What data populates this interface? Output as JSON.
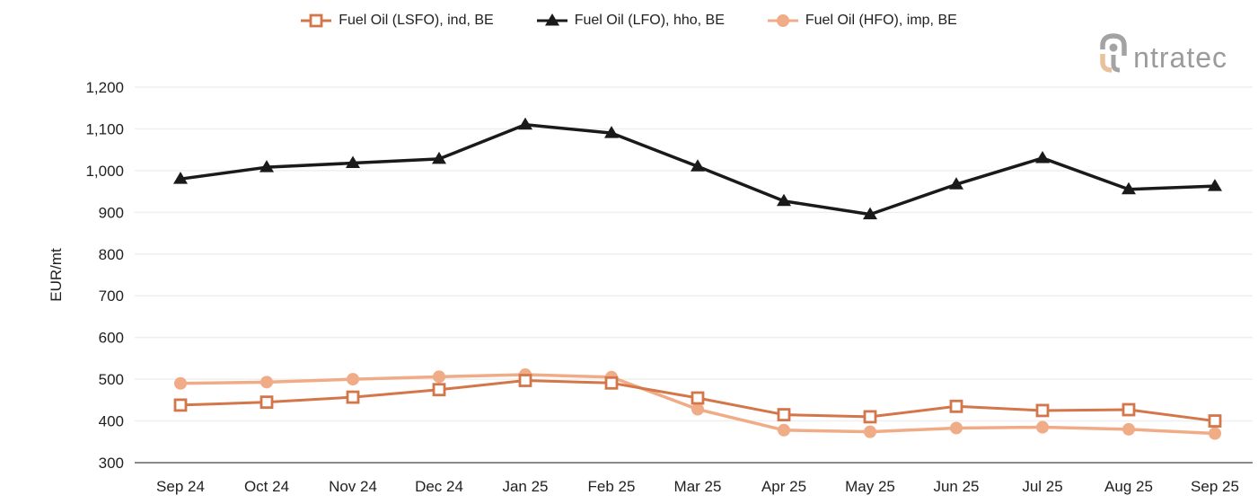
{
  "chart_data": {
    "type": "line",
    "title": "",
    "ylabel": "EUR/mt",
    "xlabel": "",
    "ylim": [
      300,
      1200
    ],
    "y_ticks": [
      {
        "value": 300,
        "label": "300"
      },
      {
        "value": 400,
        "label": "400"
      },
      {
        "value": 500,
        "label": "500"
      },
      {
        "value": 600,
        "label": "600"
      },
      {
        "value": 700,
        "label": "700"
      },
      {
        "value": 800,
        "label": "800"
      },
      {
        "value": 900,
        "label": "900"
      },
      {
        "value": 1000,
        "label": "1,000"
      },
      {
        "value": 1100,
        "label": "1,100"
      },
      {
        "value": 1200,
        "label": "1,200"
      }
    ],
    "grid": true,
    "legend_position": "top-center",
    "categories": [
      "Sep 24",
      "Oct 24",
      "Nov 24",
      "Dec 24",
      "Jan 25",
      "Feb 25",
      "Mar 25",
      "Apr 25",
      "May 25",
      "Jun 25",
      "Jul 25",
      "Aug 25",
      "Sep 25"
    ],
    "series": [
      {
        "name": "Fuel Oil (LSFO), ind, BE",
        "marker": "square",
        "color": "#d3764a",
        "values": [
          438,
          445,
          457,
          475,
          497,
          491,
          455,
          415,
          410,
          435,
          425,
          427,
          400
        ]
      },
      {
        "name": "Fuel Oil (LFO), hho, BE",
        "marker": "triangle",
        "color": "#1a1a1a",
        "values": [
          980,
          1008,
          1018,
          1028,
          1110,
          1090,
          1010,
          927,
          895,
          967,
          1030,
          955,
          963
        ]
      },
      {
        "name": "Fuel Oil (HFO), imp, BE",
        "marker": "circle",
        "color": "#efac87",
        "values": [
          490,
          493,
          500,
          506,
          511,
          505,
          428,
          378,
          374,
          383,
          385,
          380,
          370
        ]
      }
    ]
  },
  "logo": {
    "text": "ntratec",
    "gray": "#a3a3a3",
    "tan": "#e9c29c"
  },
  "colors": {
    "text": "#212121",
    "gridline": "#efefef",
    "axis_line": "#8a8a8a",
    "background": "#ffffff"
  }
}
